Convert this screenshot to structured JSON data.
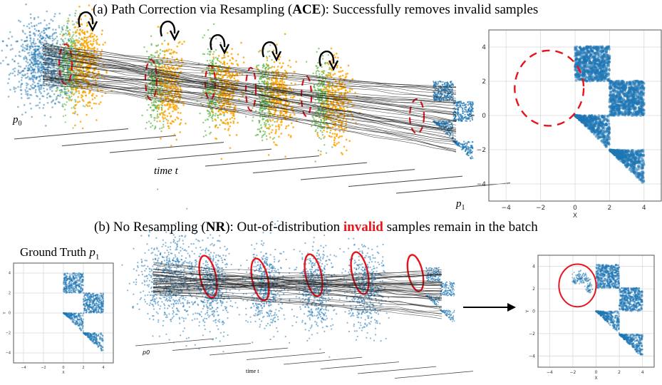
{
  "panel_a": {
    "label": "(a) Path Correction via Resampling (",
    "bold": "ACE",
    "rest": "): Successfully removes invalid samples",
    "p0": "p",
    "p0_sub": "0",
    "time": "time t",
    "p1": "p",
    "p1_sub": "1"
  },
  "panel_b": {
    "label": "(b) No Resampling (",
    "bold": "NR",
    "mid": "): Out-of-distribution ",
    "highlight": "invalid",
    "rest": " samples remain in the batch",
    "ground_truth": "Ground Truth ",
    "gt_p": "p",
    "gt_sub": "1",
    "p0": "p0",
    "time": "time t"
  },
  "plots": {
    "x_ticks": [
      "−4",
      "−2",
      "0",
      "2",
      "4"
    ],
    "y_ticks": [
      "4",
      "2",
      "0",
      "−2",
      "−4"
    ],
    "xlabel": "X",
    "ylabel": "Y"
  },
  "colors": {
    "blue": "#1f77b4",
    "green": "#5cb545",
    "orange": "#ffa500",
    "red": "#e8141b",
    "grid": "#d9d9d9"
  }
}
